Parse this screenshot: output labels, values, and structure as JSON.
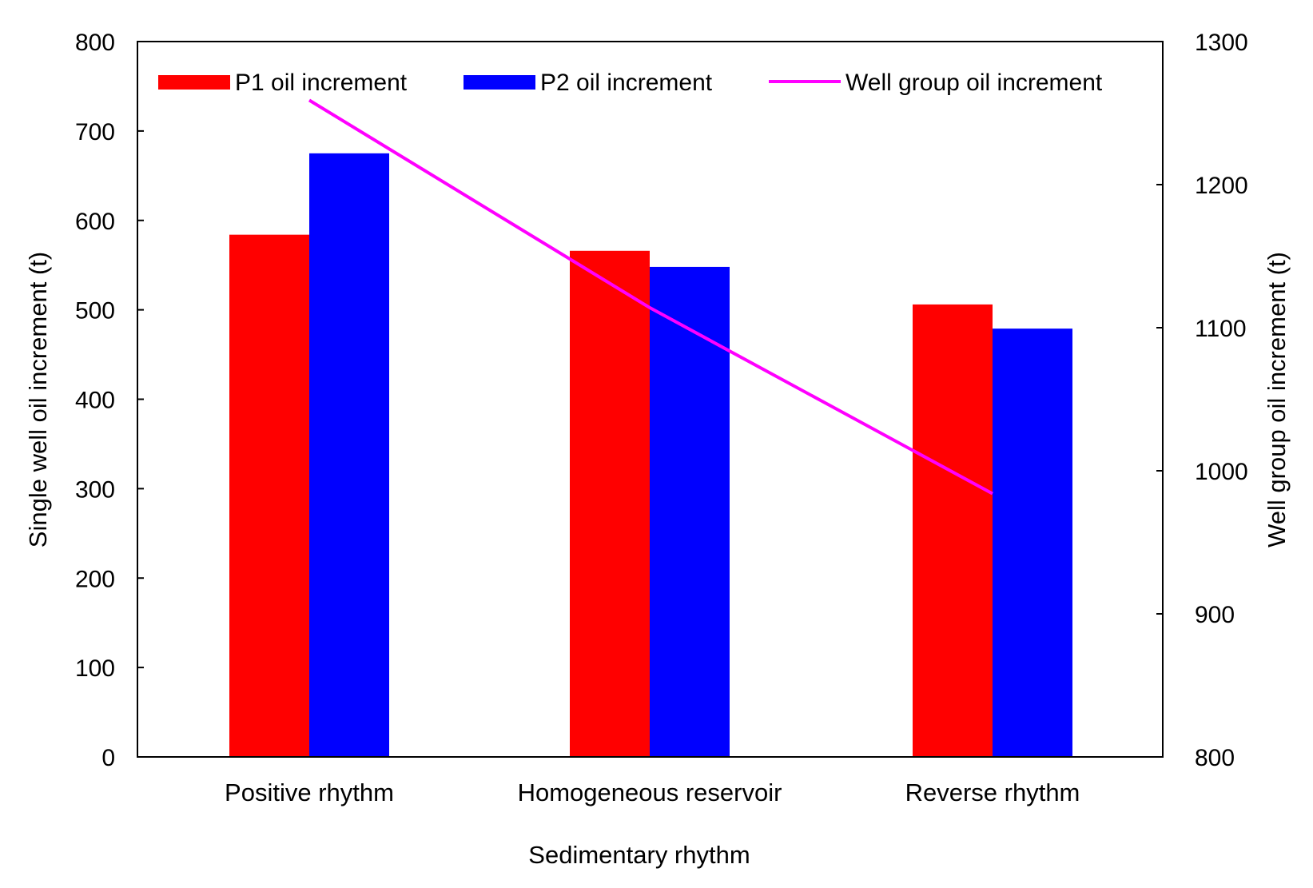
{
  "chart_data": {
    "type": "bar",
    "categories": [
      "Positive rhythm",
      "Homogeneous reservoir",
      "Reverse rhythm"
    ],
    "series": [
      {
        "name": "P1 oil increment",
        "type": "bar",
        "axis": "left",
        "color": "#ff0000",
        "values": [
          584,
          566,
          506
        ]
      },
      {
        "name": "P2 oil increment",
        "type": "bar",
        "axis": "left",
        "color": "#0000ff",
        "values": [
          675,
          548,
          479
        ]
      },
      {
        "name": "Well group oil increment",
        "type": "line",
        "axis": "right",
        "color": "#ff00ff",
        "values": [
          1259,
          1114,
          984
        ]
      }
    ],
    "title": "",
    "xlabel": "Sedimentary rhythm",
    "ylabel": "Single  well oil increment (t)",
    "y2label": "Well group oil increment (t)",
    "ylim": [
      0,
      800
    ],
    "y2lim": [
      800,
      1300
    ],
    "yticks": [
      0,
      100,
      200,
      300,
      400,
      500,
      600,
      700,
      800
    ],
    "y2ticks": [
      800,
      900,
      1000,
      1100,
      1200,
      1300
    ],
    "grid": false,
    "legend_position": "top"
  }
}
